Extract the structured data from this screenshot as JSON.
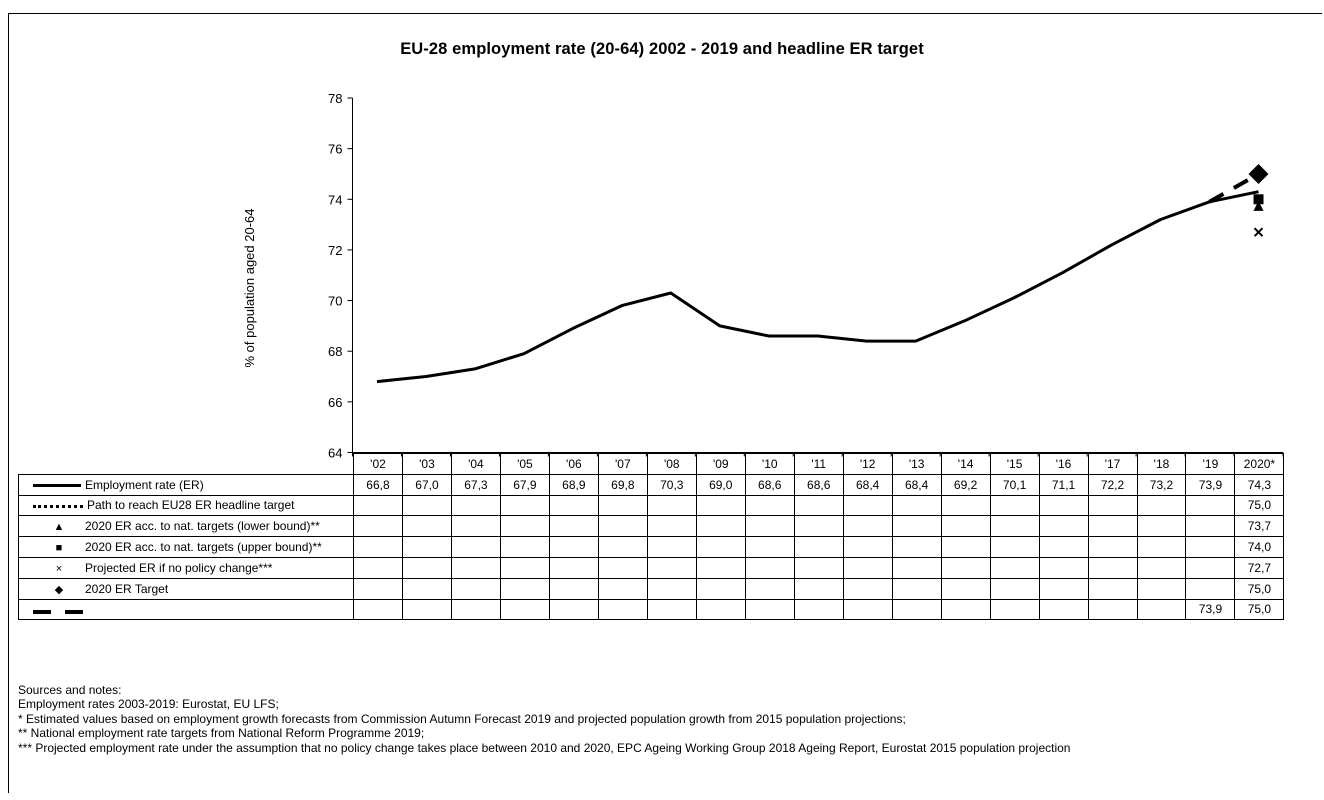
{
  "chart_data": {
    "type": "line",
    "title": "EU-28 employment  rate (20-64) 2002 - 2019 and headline  ER target",
    "ylabel": "% of population  aged 20-64",
    "ylim": [
      64,
      78
    ],
    "yticks": [
      64,
      66,
      68,
      70,
      72,
      74,
      76,
      78
    ],
    "categories": [
      "'02",
      "'03",
      "'04",
      "'05",
      "'06",
      "'07",
      "'08",
      "'09",
      "'10",
      "'11",
      "'12",
      "'13",
      "'14",
      "'15",
      "'16",
      "'17",
      "'18",
      "'19",
      "2020*"
    ],
    "series": [
      {
        "name": "Employment rate (ER)",
        "marker": "solid-line",
        "values": [
          "66,8",
          "67,0",
          "67,3",
          "67,9",
          "68,9",
          "69,8",
          "70,3",
          "69,0",
          "68,6",
          "68,6",
          "68,4",
          "68,4",
          "69,2",
          "70,1",
          "71,1",
          "72,2",
          "73,2",
          "73,9",
          "74,3"
        ]
      },
      {
        "name": "Path to reach EU28 ER headline target",
        "marker": "dotted-line",
        "values": [
          "",
          "",
          "",
          "",
          "",
          "",
          "",
          "",
          "",
          "",
          "",
          "",
          "",
          "",
          "",
          "",
          "",
          "",
          "75,0"
        ]
      },
      {
        "name": "2020 ER acc. to nat. targets (lower bound)**",
        "marker": "▲",
        "values": [
          "",
          "",
          "",
          "",
          "",
          "",
          "",
          "",
          "",
          "",
          "",
          "",
          "",
          "",
          "",
          "",
          "",
          "",
          "73,7"
        ]
      },
      {
        "name": "2020 ER acc. to nat. targets (upper bound)**",
        "marker": "■",
        "values": [
          "",
          "",
          "",
          "",
          "",
          "",
          "",
          "",
          "",
          "",
          "",
          "",
          "",
          "",
          "",
          "",
          "",
          "",
          "74,0"
        ]
      },
      {
        "name": "Projected ER if no policy change***",
        "marker": "×",
        "values": [
          "",
          "",
          "",
          "",
          "",
          "",
          "",
          "",
          "",
          "",
          "",
          "",
          "",
          "",
          "",
          "",
          "",
          "",
          "72,7"
        ]
      },
      {
        "name": "2020 ER Target",
        "marker": "◆",
        "values": [
          "",
          "",
          "",
          "",
          "",
          "",
          "",
          "",
          "",
          "",
          "",
          "",
          "",
          "",
          "",
          "",
          "",
          "",
          "75,0"
        ]
      },
      {
        "name": "",
        "marker": "dashed-line",
        "values": [
          "",
          "",
          "",
          "",
          "",
          "",
          "",
          "",
          "",
          "",
          "",
          "",
          "",
          "",
          "",
          "",
          "",
          "73,9",
          "75,0"
        ]
      }
    ],
    "grid": false,
    "legend": "table-below"
  },
  "notes": [
    "Sources and notes:",
    "Employment rates 2003-2019: Eurostat, EU LFS;",
    "* Estimated values based on employment growth forecasts from Commission Autumn Forecast 2019 and projected population growth from 2015 population  projections;",
    "** National employment rate targets from National Reform Programme 2019;",
    "*** Projected employment rate under the assumption  that  no policy change takes place between 2010 and 2020, EPC Ageing Working Group 2018 Ageing Report, Eurostat 2015 population  projection"
  ]
}
